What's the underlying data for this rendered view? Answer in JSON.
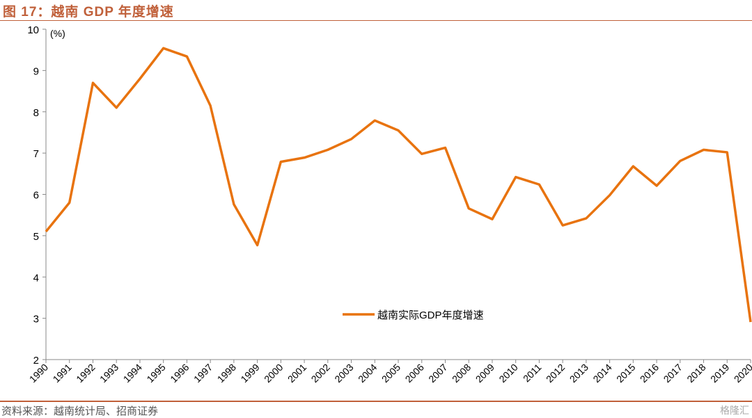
{
  "title": "图 17：越南 GDP 年度增速",
  "source": "资料来源：越南统计局、招商证券",
  "watermark": "格隆汇",
  "chart_data": {
    "type": "line",
    "ylabel": "(%)",
    "ylim": [
      2,
      10
    ],
    "yticks": [
      2,
      3,
      4,
      5,
      6,
      7,
      8,
      9,
      10
    ],
    "grid": false,
    "legend_position": "center-right",
    "color": "#e8730f",
    "x": [
      "1990",
      "1991",
      "1992",
      "1993",
      "1994",
      "1995",
      "1996",
      "1997",
      "1998",
      "1999",
      "2000",
      "2001",
      "2002",
      "2003",
      "2004",
      "2005",
      "2006",
      "2007",
      "2008",
      "2009",
      "2010",
      "2011",
      "2012",
      "2013",
      "2014",
      "2015",
      "2016",
      "2017",
      "2018",
      "2019",
      "2020"
    ],
    "series": [
      {
        "name": "越南实际GDP年度增速",
        "values": [
          5.1,
          5.8,
          8.7,
          8.1,
          8.8,
          9.54,
          9.34,
          8.15,
          5.76,
          4.77,
          6.79,
          6.89,
          7.08,
          7.34,
          7.79,
          7.55,
          6.98,
          7.13,
          5.66,
          5.4,
          6.42,
          6.24,
          5.25,
          5.42,
          5.98,
          6.68,
          6.21,
          6.81,
          7.08,
          7.02,
          2.91
        ]
      }
    ]
  }
}
